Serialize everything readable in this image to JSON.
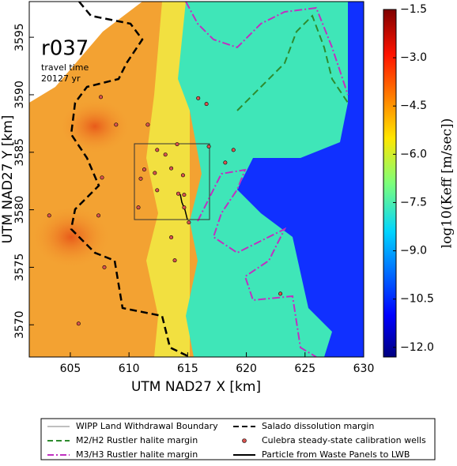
{
  "chart_data": {
    "type": "map",
    "title": "r037",
    "annotations": [
      "travel time",
      "20127 yr"
    ],
    "x_label": "UTM NAD27 X [km]",
    "y_label": "UTM NAD27 Y [km]",
    "xlim": [
      601.5,
      630
    ],
    "ylim": [
      3567.2,
      3598.1
    ],
    "xticks": [
      605,
      610,
      615,
      620,
      625,
      630
    ],
    "yticks": [
      3570,
      3575,
      3580,
      3585,
      3590,
      3595
    ],
    "colorbar_label": "log10(Keff [m/sec])",
    "clim": [
      -12.3,
      -1.5
    ],
    "cticks": [
      {
        "value": -1.5,
        "label": "−1.5"
      },
      {
        "value": -3.0,
        "label": "−3.0"
      },
      {
        "value": -4.5,
        "label": "−4.5"
      },
      {
        "value": -6.0,
        "label": "−6.0"
      },
      {
        "value": -7.5,
        "label": "−7.5"
      },
      {
        "value": -9.0,
        "label": "−9.0"
      },
      {
        "value": -10.5,
        "label": "−10.5"
      },
      {
        "value": -12.0,
        "label": "−12.0"
      }
    ],
    "legend": [
      {
        "name": "WIPP Land Withdrawal Boundary",
        "color": "#555555",
        "style": "solid-thin"
      },
      {
        "name": "Salado dissolution margin",
        "color": "#000000",
        "style": "dashed"
      },
      {
        "name": "M2/H2 Rustler halite margin",
        "color": "#2e8b2e",
        "style": "dashed"
      },
      {
        "name": "Culebra steady-state calibration wells",
        "color": "#d9534f",
        "style": "marker"
      },
      {
        "name": "M3/H3 Rustler halite margin",
        "color": "#c030c0",
        "style": "dashdot"
      },
      {
        "name": "Particle from Waste Panels to LWB",
        "color": "#000000",
        "style": "solid"
      }
    ],
    "wells": {
      "x": [
        607.6,
        608.9,
        611.6,
        615.9,
        616.6,
        612.4,
        613.1,
        614.1,
        616.8,
        611.3,
        612.2,
        613.6,
        614.6,
        612.4,
        614.2,
        614.7,
        611.0,
        607.7,
        610.8,
        614.7,
        615.1,
        618.2,
        618.9,
        607.4,
        603.2,
        607.9,
        605.7,
        622.9,
        613.9,
        613.6
      ],
      "y": [
        3589.8,
        3587.4,
        3587.4,
        3589.7,
        3589.2,
        3585.2,
        3584.8,
        3585.7,
        3585.5,
        3583.5,
        3583.2,
        3583.6,
        3583.0,
        3581.7,
        3581.4,
        3581.3,
        3582.7,
        3582.8,
        3580.2,
        3580.2,
        3578.9,
        3584.1,
        3585.2,
        3579.5,
        3579.5,
        3575.0,
        3570.1,
        3572.7,
        3575.6,
        3577.6
      ]
    }
  }
}
